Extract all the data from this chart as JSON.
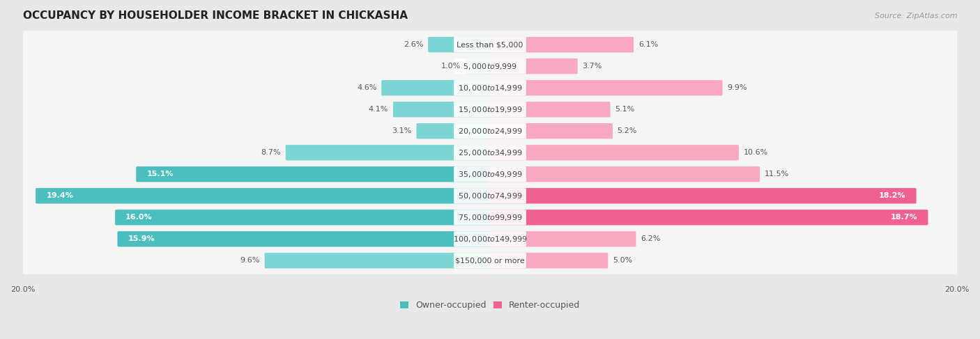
{
  "title": "OCCUPANCY BY HOUSEHOLDER INCOME BRACKET IN CHICKASHA",
  "source": "Source: ZipAtlas.com",
  "categories": [
    "Less than $5,000",
    "$5,000 to $9,999",
    "$10,000 to $14,999",
    "$15,000 to $19,999",
    "$20,000 to $24,999",
    "$25,000 to $34,999",
    "$35,000 to $49,999",
    "$50,000 to $74,999",
    "$75,000 to $99,999",
    "$100,000 to $149,999",
    "$150,000 or more"
  ],
  "owner_values": [
    2.6,
    1.0,
    4.6,
    4.1,
    3.1,
    8.7,
    15.1,
    19.4,
    16.0,
    15.9,
    9.6
  ],
  "renter_values": [
    6.1,
    3.7,
    9.9,
    5.1,
    5.2,
    10.6,
    11.5,
    18.2,
    18.7,
    6.2,
    5.0
  ],
  "owner_color": "#4BBFBF",
  "owner_color_light": "#7DD4D4",
  "renter_color": "#F06090",
  "renter_color_light": "#F8A8C0",
  "background_color": "#e8e8e8",
  "bar_background": "#f5f5f5",
  "xlim": 20.0,
  "bar_height": 0.62,
  "label_fontsize": 8.0,
  "title_fontsize": 11,
  "legend_fontsize": 9,
  "owner_threshold": 10.0,
  "renter_threshold": 15.0
}
